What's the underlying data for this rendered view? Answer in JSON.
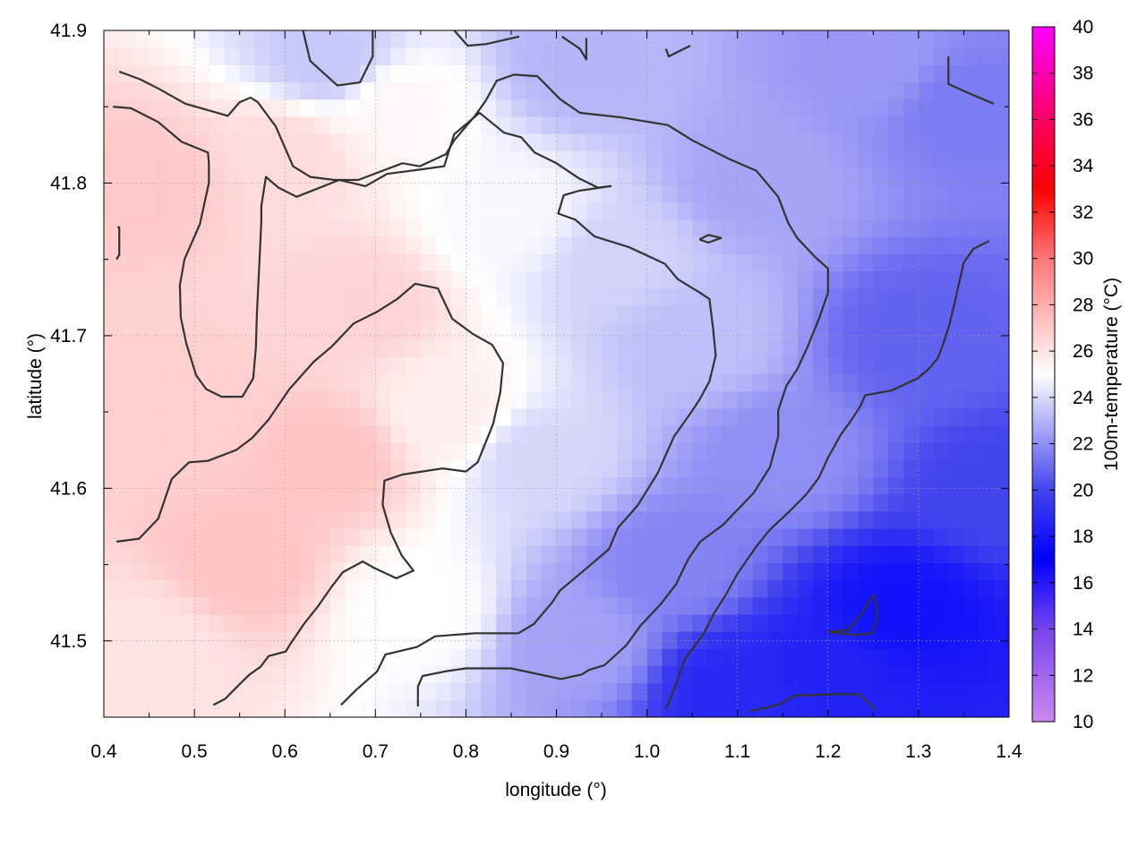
{
  "chart_data": {
    "type": "heatmap",
    "title": "",
    "xlabel": "longitude (°)",
    "ylabel": "latitude (°)",
    "colorbar_label": "100m-temperature (°C)",
    "xlim": [
      0.4,
      1.4
    ],
    "ylim": [
      41.45,
      41.9
    ],
    "x_ticks": [
      0.4,
      0.5,
      0.6,
      0.7,
      0.8,
      0.9,
      1.0,
      1.1,
      1.2,
      1.3,
      1.4
    ],
    "x_tick_labels": [
      "0.4",
      "0.5",
      "0.6",
      "0.7",
      "0.8",
      "0.9",
      "1.0",
      "1.1",
      "1.2",
      "1.3",
      "1.4"
    ],
    "y_ticks": [
      41.5,
      41.6,
      41.7,
      41.8,
      41.9
    ],
    "y_tick_labels": [
      "41.5",
      "41.6",
      "41.7",
      "41.8",
      "41.9"
    ],
    "colorbar_range": [
      10,
      40
    ],
    "colorbar_ticks": [
      10,
      12,
      14,
      16,
      18,
      20,
      22,
      24,
      26,
      28,
      30,
      32,
      34,
      36,
      38,
      40
    ],
    "colorbar_tick_labels": [
      "10",
      "12",
      "14",
      "16",
      "18",
      "20",
      "22",
      "24",
      "26",
      "28",
      "30",
      "32",
      "34",
      "36",
      "38",
      "40"
    ],
    "colormap_stops": [
      {
        "value": 10,
        "color": "#cc88ee"
      },
      {
        "value": 14,
        "color": "#7744ee"
      },
      {
        "value": 17,
        "color": "#0000ff"
      },
      {
        "value": 20,
        "color": "#4444ee"
      },
      {
        "value": 25,
        "color": "#ffffff"
      },
      {
        "value": 30,
        "color": "#ff7777"
      },
      {
        "value": 33,
        "color": "#ff0000"
      },
      {
        "value": 36,
        "color": "#ff0066"
      },
      {
        "value": 40,
        "color": "#ff00ff"
      }
    ],
    "grid": true,
    "temperature_field_points": [
      {
        "lon": 0.45,
        "lat": 41.8,
        "t": 27.0
      },
      {
        "lon": 0.5,
        "lat": 41.65,
        "t": 26.8
      },
      {
        "lon": 0.55,
        "lat": 41.55,
        "t": 27.2
      },
      {
        "lon": 0.65,
        "lat": 41.62,
        "t": 27.2
      },
      {
        "lon": 0.68,
        "lat": 41.72,
        "t": 26.6
      },
      {
        "lon": 0.6,
        "lat": 41.82,
        "t": 26.3
      },
      {
        "lon": 0.72,
        "lat": 41.85,
        "t": 25.3
      },
      {
        "lon": 0.78,
        "lat": 41.65,
        "t": 25.6
      },
      {
        "lon": 0.75,
        "lat": 41.52,
        "t": 25.0
      },
      {
        "lon": 0.45,
        "lat": 41.5,
        "t": 26.0
      },
      {
        "lon": 0.85,
        "lat": 41.78,
        "t": 24.8
      },
      {
        "lon": 0.88,
        "lat": 41.62,
        "t": 23.9
      },
      {
        "lon": 0.92,
        "lat": 41.5,
        "t": 22.5
      },
      {
        "lon": 0.97,
        "lat": 41.75,
        "t": 23.8
      },
      {
        "lon": 1.05,
        "lat": 41.7,
        "t": 23.3
      },
      {
        "lon": 1.03,
        "lat": 41.55,
        "t": 21.7
      },
      {
        "lon": 1.12,
        "lat": 41.8,
        "t": 22.6
      },
      {
        "lon": 1.15,
        "lat": 41.62,
        "t": 22.0
      },
      {
        "lon": 1.2,
        "lat": 41.48,
        "t": 18.5
      },
      {
        "lon": 1.28,
        "lat": 41.52,
        "t": 17.8
      },
      {
        "lon": 1.3,
        "lat": 41.7,
        "t": 20.8
      },
      {
        "lon": 1.35,
        "lat": 41.85,
        "t": 21.5
      },
      {
        "lon": 1.25,
        "lat": 41.88,
        "t": 22.3
      },
      {
        "lon": 1.38,
        "lat": 41.6,
        "t": 20.0
      },
      {
        "lon": 0.65,
        "lat": 41.88,
        "t": 23.5
      },
      {
        "lon": 0.93,
        "lat": 41.88,
        "t": 23.0
      },
      {
        "lon": 1.1,
        "lat": 41.47,
        "t": 18.8
      }
    ],
    "contour_lines": [
      [
        [
          0.417,
          41.873
        ],
        [
          0.44,
          41.868
        ],
        [
          0.46,
          41.862
        ],
        [
          0.49,
          41.852
        ],
        [
          0.537,
          41.844
        ],
        [
          0.55,
          41.853
        ],
        [
          0.562,
          41.856
        ],
        [
          0.57,
          41.853
        ],
        [
          0.59,
          41.837
        ],
        [
          0.609,
          41.811
        ],
        [
          0.628,
          41.804
        ],
        [
          0.655,
          41.802
        ],
        [
          0.681,
          41.802
        ],
        [
          0.73,
          41.813
        ],
        [
          0.749,
          41.811
        ],
        [
          0.778,
          41.819
        ],
        [
          0.787,
          41.828
        ],
        [
          0.81,
          41.844
        ],
        [
          0.822,
          41.854
        ],
        [
          0.834,
          41.867
        ],
        [
          0.853,
          41.871
        ],
        [
          0.879,
          41.87
        ],
        [
          0.904,
          41.855
        ],
        [
          0.926,
          41.846
        ],
        [
          0.972,
          41.843
        ],
        [
          1.023,
          41.838
        ],
        [
          1.05,
          41.828
        ],
        [
          1.09,
          41.816
        ],
        [
          1.121,
          41.808
        ],
        [
          1.145,
          41.791
        ],
        [
          1.156,
          41.774
        ],
        [
          1.166,
          41.764
        ],
        [
          1.185,
          41.752
        ],
        [
          1.2,
          41.744
        ],
        [
          1.2,
          41.728
        ],
        [
          1.19,
          41.711
        ],
        [
          1.177,
          41.692
        ],
        [
          1.166,
          41.678
        ],
        [
          1.154,
          41.667
        ],
        [
          1.145,
          41.651
        ],
        [
          1.145,
          41.634
        ],
        [
          1.136,
          41.614
        ],
        [
          1.118,
          41.597
        ],
        [
          1.105,
          41.589
        ],
        [
          1.084,
          41.576
        ],
        [
          1.059,
          41.565
        ],
        [
          1.046,
          41.554
        ],
        [
          1.032,
          41.537
        ],
        [
          1.015,
          41.524
        ],
        [
          0.993,
          41.51
        ],
        [
          0.977,
          41.497
        ],
        [
          0.953,
          41.484
        ],
        [
          0.936,
          41.481
        ],
        [
          0.928,
          41.478
        ],
        [
          0.905,
          41.475
        ],
        [
          0.85,
          41.482
        ],
        [
          0.8,
          41.482
        ],
        [
          0.777,
          41.48
        ],
        [
          0.752,
          41.477
        ],
        [
          0.747,
          41.47
        ],
        [
          0.747,
          41.457
        ]
      ],
      [
        [
          0.41,
          41.85
        ],
        [
          0.43,
          41.849
        ],
        [
          0.46,
          41.84
        ],
        [
          0.486,
          41.827
        ],
        [
          0.515,
          41.82
        ],
        [
          0.516,
          41.813
        ],
        [
          0.516,
          41.8
        ],
        [
          0.506,
          41.773
        ],
        [
          0.489,
          41.75
        ],
        [
          0.484,
          41.733
        ],
        [
          0.485,
          41.712
        ],
        [
          0.491,
          41.695
        ],
        [
          0.502,
          41.674
        ],
        [
          0.513,
          41.665
        ],
        [
          0.53,
          41.66
        ],
        [
          0.553,
          41.66
        ],
        [
          0.565,
          41.672
        ],
        [
          0.568,
          41.692
        ],
        [
          0.569,
          41.714
        ],
        [
          0.572,
          41.75
        ],
        [
          0.574,
          41.775
        ],
        [
          0.574,
          41.785
        ],
        [
          0.579,
          41.804
        ],
        [
          0.593,
          41.797
        ],
        [
          0.613,
          41.791
        ],
        [
          0.66,
          41.802
        ],
        [
          0.689,
          41.798
        ],
        [
          0.713,
          41.806
        ],
        [
          0.751,
          41.809
        ],
        [
          0.776,
          41.811
        ],
        [
          0.787,
          41.832
        ],
        [
          0.815,
          41.846
        ],
        [
          0.842,
          41.833
        ],
        [
          0.861,
          41.83
        ],
        [
          0.876,
          41.82
        ],
        [
          0.9,
          41.813
        ],
        [
          0.925,
          41.803
        ],
        [
          0.946,
          41.797
        ],
        [
          0.96,
          41.798
        ],
        [
          0.925,
          41.795
        ],
        [
          0.908,
          41.792
        ],
        [
          0.902,
          41.78
        ],
        [
          0.921,
          41.776
        ],
        [
          0.942,
          41.765
        ],
        [
          0.98,
          41.758
        ],
        [
          1.002,
          41.752
        ],
        [
          1.02,
          41.747
        ],
        [
          1.034,
          41.737
        ],
        [
          1.059,
          41.728
        ],
        [
          1.069,
          41.724
        ],
        [
          1.073,
          41.705
        ],
        [
          1.076,
          41.687
        ],
        [
          1.069,
          41.67
        ],
        [
          1.058,
          41.658
        ],
        [
          1.048,
          41.649
        ],
        [
          1.03,
          41.634
        ],
        [
          1.021,
          41.622
        ],
        [
          1.012,
          41.61
        ],
        [
          0.99,
          41.589
        ],
        [
          0.968,
          41.574
        ],
        [
          0.958,
          41.56
        ],
        [
          0.932,
          41.547
        ],
        [
          0.904,
          41.533
        ],
        [
          0.895,
          41.525
        ],
        [
          0.875,
          41.511
        ],
        [
          0.858,
          41.505
        ],
        [
          0.81,
          41.505
        ],
        [
          0.766,
          41.503
        ],
        [
          0.746,
          41.496
        ],
        [
          0.711,
          41.491
        ],
        [
          0.702,
          41.48
        ],
        [
          0.679,
          41.468
        ],
        [
          0.662,
          41.458
        ]
      ],
      [
        [
          0.414,
          41.565
        ],
        [
          0.439,
          41.567
        ],
        [
          0.46,
          41.58
        ],
        [
          0.475,
          41.606
        ],
        [
          0.494,
          41.617
        ],
        [
          0.515,
          41.618
        ],
        [
          0.546,
          41.625
        ],
        [
          0.564,
          41.633
        ],
        [
          0.582,
          41.645
        ],
        [
          0.605,
          41.665
        ],
        [
          0.632,
          41.683
        ],
        [
          0.652,
          41.693
        ],
        [
          0.676,
          41.708
        ],
        [
          0.703,
          41.716
        ],
        [
          0.724,
          41.724
        ],
        [
          0.744,
          41.734
        ],
        [
          0.769,
          41.731
        ],
        [
          0.785,
          41.711
        ],
        [
          0.808,
          41.701
        ],
        [
          0.829,
          41.694
        ],
        [
          0.841,
          41.682
        ],
        [
          0.838,
          41.663
        ],
        [
          0.83,
          41.642
        ],
        [
          0.813,
          41.617
        ],
        [
          0.8,
          41.611
        ],
        [
          0.774,
          41.613
        ],
        [
          0.73,
          41.609
        ],
        [
          0.71,
          41.605
        ],
        [
          0.708,
          41.589
        ],
        [
          0.717,
          41.571
        ],
        [
          0.729,
          41.556
        ],
        [
          0.742,
          41.546
        ],
        [
          0.723,
          41.541
        ],
        [
          0.698,
          41.548
        ],
        [
          0.686,
          41.552
        ],
        [
          0.664,
          41.545
        ],
        [
          0.651,
          41.535
        ],
        [
          0.637,
          41.523
        ],
        [
          0.621,
          41.511
        ],
        [
          0.606,
          41.498
        ],
        [
          0.601,
          41.493
        ],
        [
          0.582,
          41.49
        ],
        [
          0.573,
          41.483
        ],
        [
          0.561,
          41.478
        ],
        [
          0.549,
          41.471
        ],
        [
          0.534,
          41.462
        ],
        [
          0.521,
          41.458
        ]
      ],
      [
        [
          1.021,
          41.455
        ],
        [
          1.031,
          41.47
        ],
        [
          1.042,
          41.488
        ],
        [
          1.063,
          41.505
        ],
        [
          1.074,
          41.518
        ],
        [
          1.087,
          41.53
        ],
        [
          1.1,
          41.544
        ],
        [
          1.121,
          41.562
        ],
        [
          1.136,
          41.573
        ],
        [
          1.156,
          41.584
        ],
        [
          1.176,
          41.596
        ],
        [
          1.19,
          41.607
        ],
        [
          1.2,
          41.62
        ],
        [
          1.214,
          41.635
        ],
        [
          1.225,
          41.644
        ],
        [
          1.236,
          41.654
        ],
        [
          1.241,
          41.661
        ],
        [
          1.27,
          41.664
        ],
        [
          1.299,
          41.672
        ],
        [
          1.311,
          41.678
        ],
        [
          1.321,
          41.685
        ],
        [
          1.327,
          41.694
        ],
        [
          1.334,
          41.707
        ],
        [
          1.339,
          41.719
        ],
        [
          1.345,
          41.735
        ],
        [
          1.35,
          41.748
        ],
        [
          1.361,
          41.757
        ],
        [
          1.378,
          41.762
        ]
      ],
      [
        [
          1.114,
          41.454
        ],
        [
          1.145,
          41.458
        ],
        [
          1.163,
          41.464
        ],
        [
          1.206,
          41.465
        ],
        [
          1.235,
          41.465
        ],
        [
          1.242,
          41.461
        ],
        [
          1.252,
          41.455
        ]
      ],
      [
        [
          1.2,
          41.506
        ],
        [
          1.228,
          41.504
        ],
        [
          1.249,
          41.505
        ],
        [
          1.254,
          41.514
        ],
        [
          1.254,
          41.524
        ],
        [
          1.25,
          41.53
        ],
        [
          1.245,
          41.525
        ],
        [
          1.235,
          41.516
        ],
        [
          1.223,
          41.507
        ],
        [
          1.2,
          41.506
        ]
      ],
      [
        [
          0.62,
          41.9
        ],
        [
          0.628,
          41.88
        ],
        [
          0.658,
          41.864
        ],
        [
          0.683,
          41.866
        ],
        [
          0.697,
          41.883
        ],
        [
          0.697,
          41.9
        ]
      ],
      [
        [
          0.787,
          41.9
        ],
        [
          0.802,
          41.89
        ],
        [
          0.822,
          41.891
        ],
        [
          0.859,
          41.896
        ]
      ],
      [
        [
          0.906,
          41.896
        ],
        [
          0.926,
          41.888
        ],
        [
          0.933,
          41.881
        ],
        [
          0.933,
          41.895
        ]
      ],
      [
        [
          1.021,
          41.888
        ],
        [
          1.024,
          41.883
        ],
        [
          1.048,
          41.89
        ]
      ],
      [
        [
          1.333,
          41.883
        ],
        [
          1.333,
          41.865
        ],
        [
          1.359,
          41.858
        ],
        [
          1.383,
          41.852
        ]
      ],
      [
        [
          0.415,
          41.771
        ],
        [
          0.417,
          41.771
        ],
        [
          0.417,
          41.753
        ],
        [
          0.414,
          41.75
        ]
      ],
      [
        [
          1.058,
          41.763
        ],
        [
          1.068,
          41.766
        ],
        [
          1.082,
          41.764
        ],
        [
          1.068,
          41.761
        ],
        [
          1.058,
          41.763
        ]
      ]
    ]
  }
}
